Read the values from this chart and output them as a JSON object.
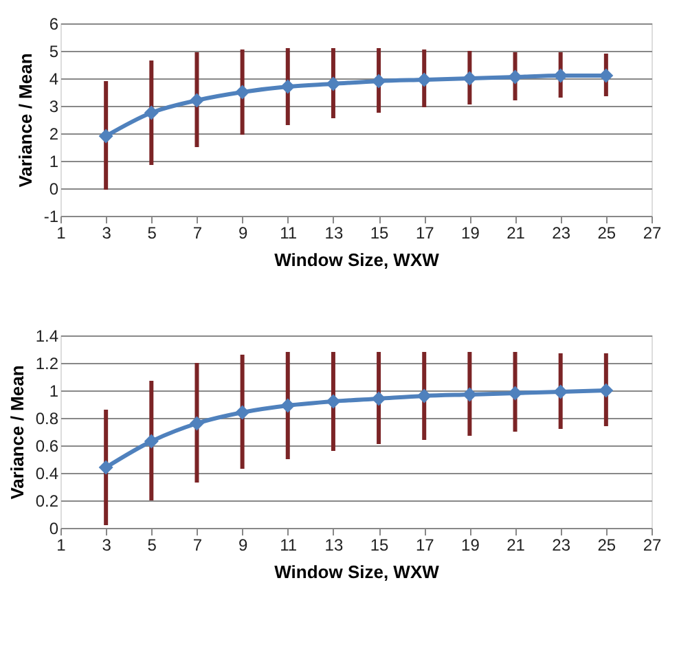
{
  "chart_data": [
    {
      "type": "line",
      "xlabel": "Window Size, WXW",
      "ylabel": "Variance / Mean",
      "x": [
        3,
        5,
        7,
        9,
        11,
        13,
        15,
        17,
        19,
        21,
        23,
        25
      ],
      "series": [
        {
          "color": "#4f81bd",
          "values": [
            1.9,
            2.75,
            3.2,
            3.5,
            3.7,
            3.8,
            3.9,
            3.95,
            4.0,
            4.05,
            4.1,
            4.1
          ],
          "errors": [
            [
              -0.05,
              3.9
            ],
            [
              0.85,
              4.65
            ],
            [
              1.5,
              4.95
            ],
            [
              1.95,
              5.05
            ],
            [
              2.3,
              5.1
            ],
            [
              2.55,
              5.1
            ],
            [
              2.75,
              5.1
            ],
            [
              2.95,
              5.05
            ],
            [
              3.05,
              5.0
            ],
            [
              3.2,
              4.95
            ],
            [
              3.3,
              4.95
            ],
            [
              3.35,
              4.9
            ]
          ]
        }
      ],
      "xlim": [
        1,
        27
      ],
      "xticks": [
        1,
        3,
        5,
        7,
        9,
        11,
        13,
        15,
        17,
        19,
        21,
        23,
        25,
        27
      ],
      "ylim": [
        -1,
        6
      ],
      "yticks": [
        -1,
        0,
        1,
        2,
        3,
        4,
        5,
        6
      ],
      "grid": "y",
      "marker": "diamond",
      "line_style": "solid"
    },
    {
      "type": "line",
      "xlabel": "Window Size, WXW",
      "ylabel": "Variance / Mean",
      "x": [
        3,
        5,
        7,
        9,
        11,
        13,
        15,
        17,
        19,
        21,
        23,
        25
      ],
      "series": [
        {
          "color": "#4f81bd",
          "values": [
            0.44,
            0.63,
            0.76,
            0.84,
            0.89,
            0.92,
            0.94,
            0.96,
            0.97,
            0.98,
            0.99,
            1.0
          ],
          "errors": [
            [
              0.02,
              0.86
            ],
            [
              0.2,
              1.07
            ],
            [
              0.33,
              1.2
            ],
            [
              0.43,
              1.26
            ],
            [
              0.5,
              1.28
            ],
            [
              0.56,
              1.28
            ],
            [
              0.61,
              1.28
            ],
            [
              0.64,
              1.28
            ],
            [
              0.67,
              1.28
            ],
            [
              0.7,
              1.28
            ],
            [
              0.72,
              1.27
            ],
            [
              0.74,
              1.27
            ]
          ]
        }
      ],
      "xlim": [
        1,
        27
      ],
      "xticks": [
        1,
        3,
        5,
        7,
        9,
        11,
        13,
        15,
        17,
        19,
        21,
        23,
        25,
        27
      ],
      "ylim": [
        0,
        1.4
      ],
      "yticks": [
        0,
        0.2,
        0.4,
        0.6,
        0.8,
        1,
        1.2,
        1.4
      ],
      "grid": "y",
      "marker": "diamond",
      "line_style": "solid"
    }
  ]
}
